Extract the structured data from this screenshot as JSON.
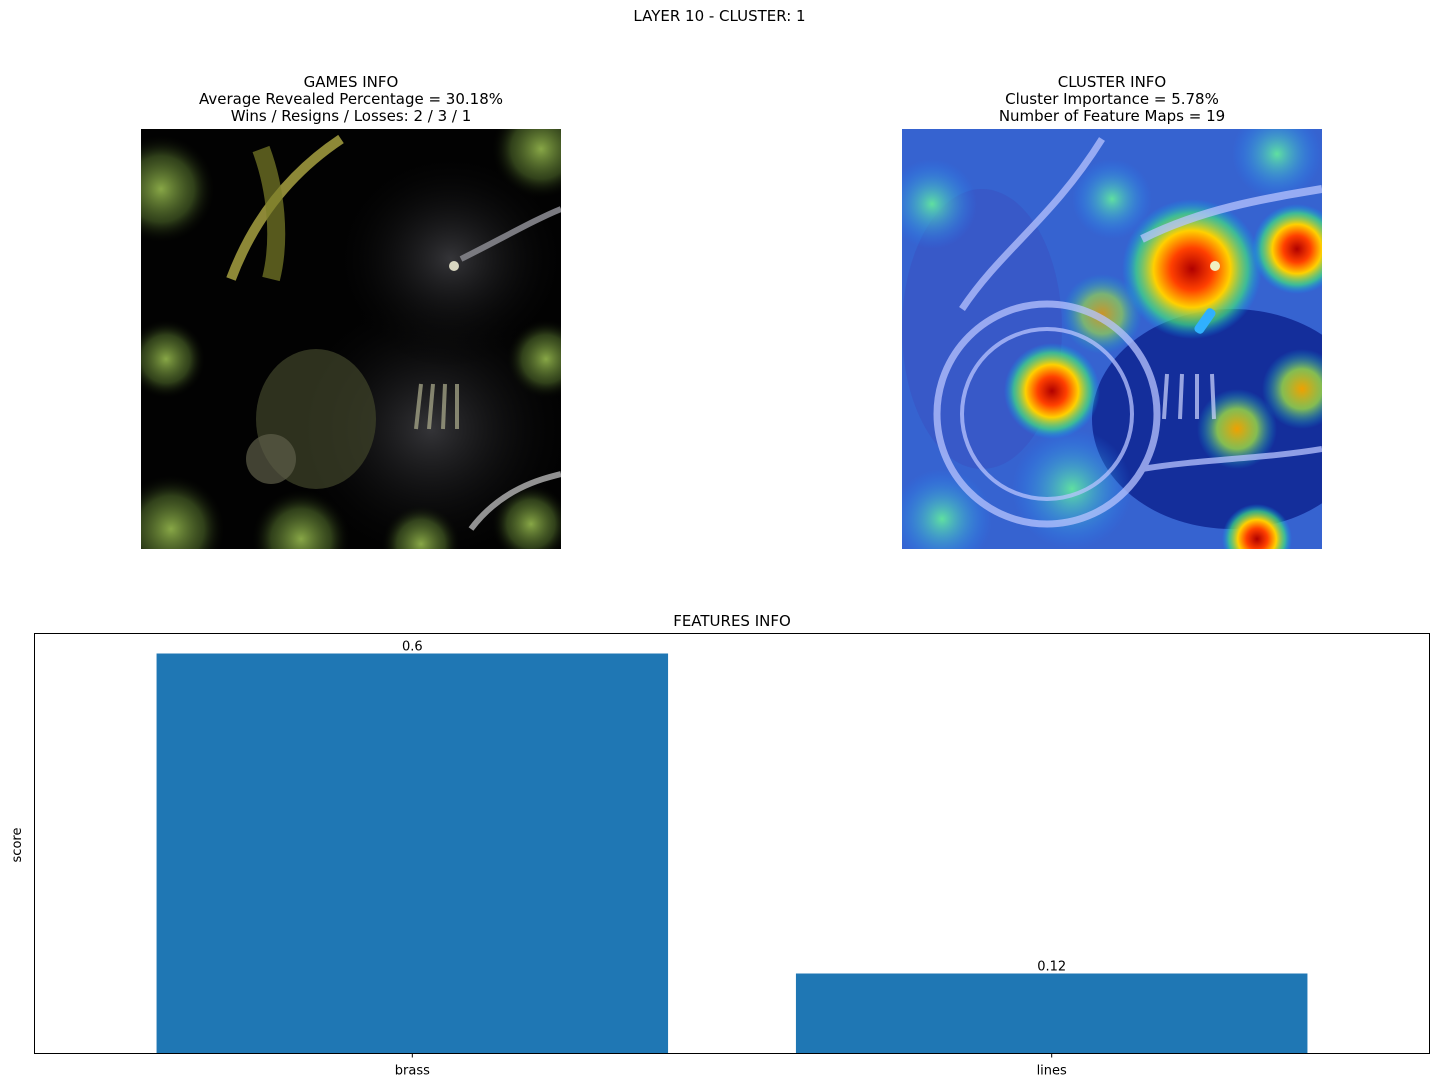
{
  "suptitle": "LAYER 10 - CLUSTER: 1",
  "games_panel": {
    "title": "GAMES INFO",
    "line1": "Average Revealed Percentage = 30.18%",
    "line2": "Wins / Resigns / Losses: 2 / 3 / 1"
  },
  "cluster_panel": {
    "title": "CLUSTER INFO",
    "line1": "Cluster Importance = 5.78%",
    "line2": "Number of Feature Maps = 19"
  },
  "chart_data": {
    "type": "bar",
    "title": "FEATURES INFO",
    "categories": [
      "brass",
      "lines"
    ],
    "values": [
      0.6,
      0.12
    ],
    "value_labels": [
      "0.6",
      "0.12"
    ],
    "xlabel": "",
    "ylabel": "score",
    "ylim": [
      0,
      0.63
    ],
    "bar_color": "#1f77b4",
    "grid": false
  }
}
